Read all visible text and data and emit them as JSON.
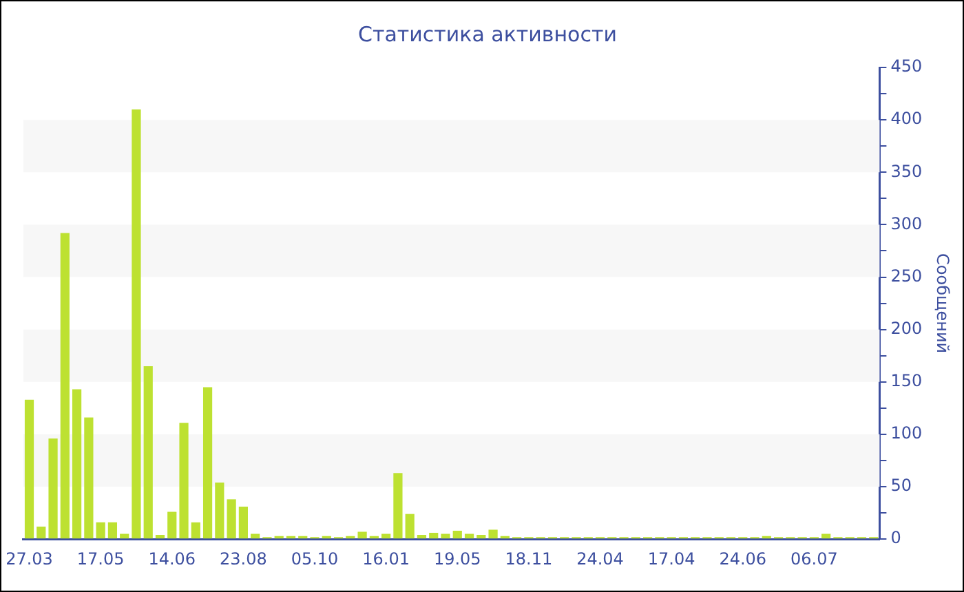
{
  "chart_data": {
    "type": "bar",
    "title": "Статистика активности",
    "ylabel": "Сообщений",
    "categories": [
      "27.03",
      null,
      null,
      null,
      null,
      null,
      "17.05",
      null,
      null,
      null,
      null,
      null,
      "14.06",
      null,
      null,
      null,
      null,
      null,
      "23.08",
      null,
      null,
      null,
      null,
      null,
      "05.10",
      null,
      null,
      null,
      null,
      null,
      "16.01",
      null,
      null,
      null,
      null,
      null,
      "19.05",
      null,
      null,
      null,
      null,
      null,
      "18.11",
      null,
      null,
      null,
      null,
      null,
      "24.04",
      null,
      null,
      null,
      null,
      null,
      "17.04",
      null,
      null,
      null,
      null,
      null,
      "24.06",
      null,
      null,
      null,
      null,
      null,
      "06.07",
      null,
      null,
      null,
      null,
      null
    ],
    "values": [
      133,
      12,
      96,
      292,
      143,
      116,
      16,
      16,
      5,
      410,
      165,
      4,
      26,
      111,
      16,
      145,
      54,
      38,
      31,
      5,
      2,
      3,
      3,
      3,
      2,
      3,
      2,
      3,
      7,
      3,
      5,
      63,
      24,
      4,
      6,
      5,
      8,
      5,
      4,
      9,
      3,
      2,
      2,
      2,
      2,
      2,
      2,
      2,
      2,
      2,
      2,
      2,
      2,
      2,
      2,
      2,
      2,
      2,
      2,
      2,
      2,
      2,
      3,
      2,
      2,
      2,
      2,
      5,
      2,
      2,
      2,
      2
    ],
    "color": "#bde131",
    "ylim": [
      0,
      450
    ],
    "yticks": [
      0,
      {
        "value": 25,
        "label": null
      },
      50,
      {
        "value": 75,
        "label": null
      },
      100,
      {
        "value": 125,
        "label": null
      },
      150,
      {
        "value": 175,
        "label": null
      },
      200,
      {
        "value": 225,
        "label": null
      },
      250,
      {
        "value": 275,
        "label": null
      },
      300,
      {
        "value": 325,
        "label": null
      },
      350,
      {
        "value": 375,
        "label": null
      },
      400,
      {
        "value": 425,
        "label": null
      },
      450
    ],
    "bands": [
      {
        "axis": "y",
        "from": 50,
        "to": 100,
        "color": "#f7f7f7"
      },
      {
        "axis": "y",
        "from": 150,
        "to": 200,
        "color": "#f7f7f7"
      },
      {
        "axis": "y",
        "from": 250,
        "to": 300,
        "color": "#f7f7f7"
      },
      {
        "axis": "y",
        "from": 350,
        "to": 400,
        "color": "#f7f7f7"
      }
    ],
    "grid": false,
    "legend": false
  }
}
